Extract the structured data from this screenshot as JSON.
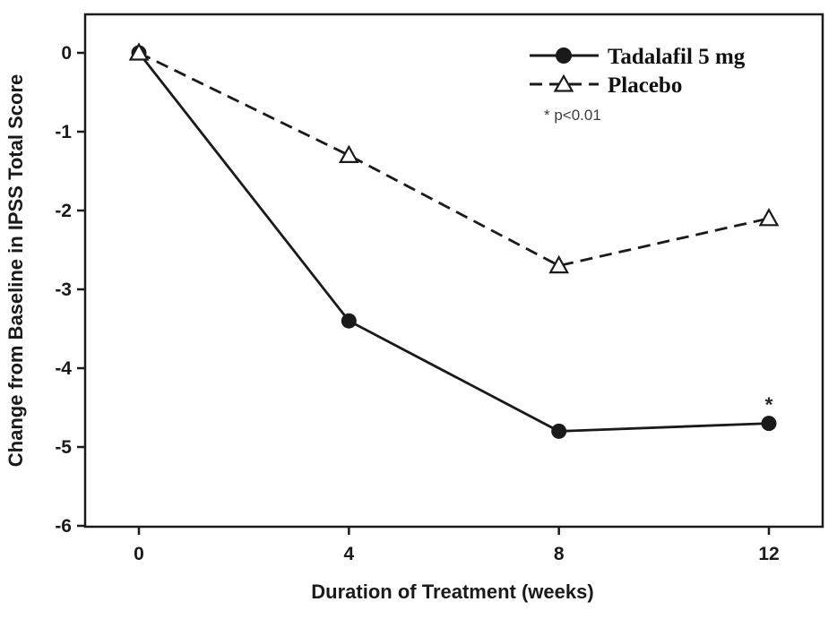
{
  "figure": {
    "background": "#ffffff",
    "ink_color": "#1a1a1a",
    "note_color": "#3d3d3d"
  },
  "chart_data": {
    "type": "line",
    "title": "",
    "xlabel": "Duration of Treatment (weeks)",
    "ylabel": "Change from Baseline in IPSS Total Score",
    "x": [
      0,
      4,
      8,
      12
    ],
    "x_tick_labels": [
      "0",
      "4",
      "8",
      "12"
    ],
    "y_tick_values": [
      0,
      -1,
      -2,
      -3,
      -4,
      -5,
      -6
    ],
    "y_tick_labels": [
      "0",
      "-1",
      "-2",
      "-3",
      "-4",
      "-5",
      "-6"
    ],
    "ylim": [
      -6,
      0
    ],
    "xlim": [
      -1,
      13
    ],
    "grid": false,
    "frame": "full-box",
    "legend_position": "top-right-inside",
    "series": [
      {
        "name": "Tadalafil 5 mg",
        "line_style": "solid",
        "marker": "filled-circle",
        "color": "#1a1a1a",
        "values": [
          0,
          -3.4,
          -4.8,
          -4.7
        ]
      },
      {
        "name": "Placebo",
        "line_style": "dashed",
        "marker": "open-triangle",
        "color": "#1a1a1a",
        "values": [
          0,
          -1.3,
          -2.7,
          -2.1
        ]
      }
    ],
    "annotations": [
      {
        "text": "* p<0.01",
        "position": "below-legend"
      }
    ],
    "point_annotations": [
      {
        "text": "*",
        "series_index": 0,
        "x": 12,
        "y": -4.7
      }
    ]
  }
}
